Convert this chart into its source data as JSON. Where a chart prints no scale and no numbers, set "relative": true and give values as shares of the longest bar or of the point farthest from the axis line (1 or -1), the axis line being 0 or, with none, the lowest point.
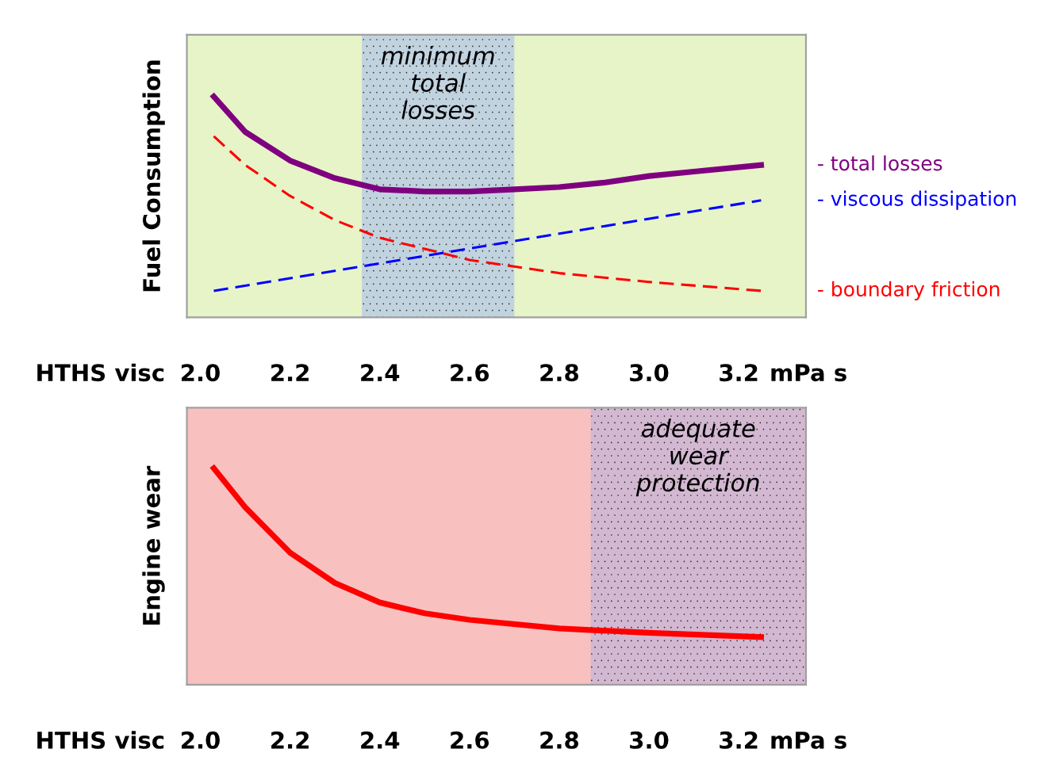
{
  "chart_data": [
    {
      "type": "line",
      "relative": true,
      "ylabel": "Fuel Consumption",
      "xlabel": "HTHS visc",
      "annotations": [
        "mPa s"
      ],
      "xlim": [
        1.97,
        3.35
      ],
      "xticks": [
        {
          "value": 2.0,
          "label": "2.0"
        },
        {
          "value": 2.2,
          "label": "2.2"
        },
        {
          "value": 2.4,
          "label": "2.4"
        },
        {
          "value": 2.6,
          "label": "2.6"
        },
        {
          "value": 2.8,
          "label": "2.8"
        },
        {
          "value": 3.0,
          "label": "3.0"
        },
        {
          "value": 3.2,
          "label": "3.2"
        }
      ],
      "grid": false,
      "legend": "right",
      "marker": "none",
      "bands": [
        {
          "axis": "x",
          "from": 2.36,
          "to": 2.7,
          "label": "minimum\ntotal\nlosses",
          "color": "#b9cbe6"
        }
      ],
      "series": [
        {
          "name": "- total losses",
          "color": "#7f007f",
          "line_style": "solid",
          "x": [
            2.03,
            2.1,
            2.2,
            2.3,
            2.4,
            2.5,
            2.6,
            2.7,
            2.8,
            2.9,
            3.0,
            3.1,
            3.25
          ],
          "values": [
            1,
            0.84,
            0.71,
            0.63,
            0.58,
            0.57,
            0.57,
            0.58,
            0.59,
            0.61,
            0.64,
            0.66,
            0.69
          ]
        },
        {
          "name": "- viscous dissipation",
          "color": "#0000ff",
          "line_style": "dashed",
          "x": [
            2.03,
            3.25
          ],
          "values": [
            0.12,
            0.53
          ]
        },
        {
          "name": "- boundary friction",
          "color": "#ff0000",
          "line_style": "dashed",
          "x": [
            2.03,
            2.1,
            2.2,
            2.3,
            2.4,
            2.5,
            2.6,
            2.8,
            3.0,
            3.25
          ],
          "values": [
            0.82,
            0.69,
            0.55,
            0.44,
            0.36,
            0.31,
            0.26,
            0.2,
            0.16,
            0.12
          ]
        }
      ]
    },
    {
      "type": "line",
      "relative": true,
      "ylabel": "Engine wear",
      "xlabel": "HTHS visc",
      "annotations": [
        "mPa s"
      ],
      "xlim": [
        1.97,
        3.35
      ],
      "xticks": [
        {
          "value": 2.0,
          "label": "2.0"
        },
        {
          "value": 2.2,
          "label": "2.2"
        },
        {
          "value": 2.4,
          "label": "2.4"
        },
        {
          "value": 2.6,
          "label": "2.6"
        },
        {
          "value": 2.8,
          "label": "2.8"
        },
        {
          "value": 3.0,
          "label": "3.0"
        },
        {
          "value": 3.2,
          "label": "3.2"
        }
      ],
      "grid": false,
      "marker": "none",
      "bands": [
        {
          "axis": "x",
          "from": 2.87,
          "to": 3.35,
          "label": "adequate\nwear\nprotection",
          "color": "#c9b6d6"
        }
      ],
      "series": [
        {
          "color": "#ff0000",
          "line_style": "solid",
          "x": [
            2.03,
            2.1,
            2.2,
            2.3,
            2.4,
            2.5,
            2.6,
            2.8,
            3.0,
            3.25
          ],
          "values": [
            1,
            0.82,
            0.61,
            0.47,
            0.38,
            0.33,
            0.3,
            0.26,
            0.24,
            0.22
          ]
        }
      ]
    }
  ]
}
